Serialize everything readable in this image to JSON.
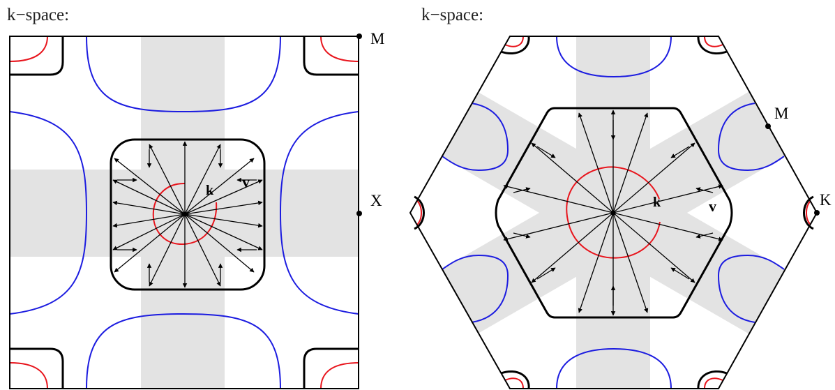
{
  "panels": {
    "square": {
      "title": "k−space:",
      "point_labels": {
        "m": "M",
        "x": "X"
      },
      "vector_labels": {
        "k": "k",
        "v": "v"
      }
    },
    "hexagon": {
      "title": "k−space:",
      "point_labels": {
        "m": "M",
        "k": "K"
      },
      "vector_labels": {
        "k": "k",
        "v": "v"
      }
    }
  },
  "colors": {
    "outline": "#000000",
    "shading": "#e3e3e3",
    "contour_red": "#e8141c",
    "contour_blue": "#1c1ce0",
    "fermi_surface": "#000000"
  }
}
